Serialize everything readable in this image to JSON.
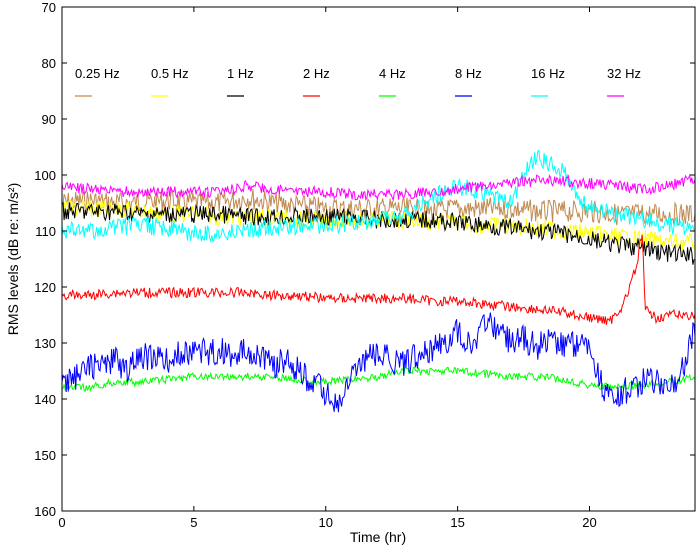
{
  "chart_data": {
    "type": "line",
    "title": "",
    "xlabel": "Time (hr)",
    "ylabel": "RMS levels (dB re: m/s²)",
    "xlim": [
      0,
      24
    ],
    "ylim": [
      70,
      160
    ],
    "y_reversed": true,
    "x_ticks": [
      0,
      5,
      10,
      15,
      20
    ],
    "y_ticks": [
      70,
      80,
      90,
      100,
      110,
      120,
      130,
      140,
      150,
      160
    ],
    "grid": false,
    "legend_placement": "top, horizontal inside axes",
    "series": [
      {
        "name": "0.25 Hz",
        "color": "#c08a50",
        "points": [
          [
            0,
            105
          ],
          [
            1,
            104.5
          ],
          [
            2,
            105
          ],
          [
            3,
            105
          ],
          [
            4,
            104.5
          ],
          [
            5,
            105
          ],
          [
            6,
            105
          ],
          [
            7,
            104
          ],
          [
            8,
            105
          ],
          [
            9,
            105.5
          ],
          [
            10,
            106
          ],
          [
            11,
            106
          ],
          [
            12,
            106
          ],
          [
            13,
            106
          ],
          [
            14,
            106.5
          ],
          [
            15,
            106
          ],
          [
            16,
            106
          ],
          [
            17,
            106
          ],
          [
            18,
            106.5
          ],
          [
            19,
            106.5
          ],
          [
            20,
            106.5
          ],
          [
            21,
            107
          ],
          [
            22,
            107
          ],
          [
            23,
            107
          ],
          [
            24,
            107
          ]
        ]
      },
      {
        "name": "0.5 Hz",
        "color": "#ffff00",
        "points": [
          [
            0,
            106
          ],
          [
            1,
            106
          ],
          [
            2,
            106
          ],
          [
            3,
            106.5
          ],
          [
            4,
            107
          ],
          [
            5,
            107
          ],
          [
            6,
            107.5
          ],
          [
            7,
            107.5
          ],
          [
            8,
            107.5
          ],
          [
            9,
            108
          ],
          [
            10,
            108
          ],
          [
            11,
            108
          ],
          [
            12,
            108
          ],
          [
            13,
            108
          ],
          [
            14,
            108.5
          ],
          [
            15,
            108.5
          ],
          [
            16,
            109
          ],
          [
            17,
            109
          ],
          [
            18,
            109.5
          ],
          [
            19,
            110
          ],
          [
            20,
            110.5
          ],
          [
            21,
            111
          ],
          [
            22,
            111.5
          ],
          [
            23,
            112
          ],
          [
            24,
            112
          ]
        ]
      },
      {
        "name": "1 Hz",
        "color": "#000000",
        "points": [
          [
            0,
            106.5
          ],
          [
            1,
            106.5
          ],
          [
            2,
            106.5
          ],
          [
            3,
            107
          ],
          [
            4,
            107
          ],
          [
            5,
            107
          ],
          [
            6,
            107
          ],
          [
            7,
            107.5
          ],
          [
            8,
            107.5
          ],
          [
            9,
            107.5
          ],
          [
            10,
            107.5
          ],
          [
            11,
            107.5
          ],
          [
            12,
            108
          ],
          [
            13,
            108
          ],
          [
            14,
            108
          ],
          [
            15,
            108.5
          ],
          [
            16,
            109
          ],
          [
            17,
            109.5
          ],
          [
            18,
            110
          ],
          [
            19,
            110.5
          ],
          [
            20,
            111.5
          ],
          [
            21,
            112.5
          ],
          [
            22,
            113
          ],
          [
            23,
            114
          ],
          [
            24,
            114.5
          ]
        ]
      },
      {
        "name": "2 Hz",
        "color": "#ff0000",
        "points": [
          [
            0,
            121.5
          ],
          [
            1,
            121.5
          ],
          [
            2,
            121
          ],
          [
            3,
            121
          ],
          [
            4,
            121
          ],
          [
            5,
            121
          ],
          [
            6,
            121
          ],
          [
            7,
            121
          ],
          [
            8,
            121.5
          ],
          [
            9,
            121.5
          ],
          [
            10,
            122
          ],
          [
            11,
            122
          ],
          [
            12,
            122
          ],
          [
            13,
            122
          ],
          [
            14,
            122.5
          ],
          [
            15,
            122.5
          ],
          [
            16,
            123
          ],
          [
            17,
            123.5
          ],
          [
            18,
            124
          ],
          [
            19,
            124.5
          ],
          [
            20,
            125.5
          ],
          [
            20.8,
            126
          ],
          [
            21.3,
            123
          ],
          [
            21.6,
            119
          ],
          [
            21.8,
            116
          ],
          [
            22,
            110
          ],
          [
            22.1,
            124
          ],
          [
            22.5,
            125.5
          ],
          [
            23,
            125
          ],
          [
            24,
            125
          ]
        ]
      },
      {
        "name": "4 Hz",
        "color": "#00ff00",
        "points": [
          [
            0,
            138
          ],
          [
            1,
            138
          ],
          [
            2,
            137
          ],
          [
            3,
            137
          ],
          [
            4,
            136.5
          ],
          [
            5,
            136
          ],
          [
            6,
            136
          ],
          [
            7,
            136
          ],
          [
            8,
            136
          ],
          [
            9,
            136.5
          ],
          [
            10,
            137
          ],
          [
            11,
            136.5
          ],
          [
            12,
            136
          ],
          [
            13,
            135
          ],
          [
            14,
            135
          ],
          [
            15,
            135
          ],
          [
            16,
            135.5
          ],
          [
            17,
            136
          ],
          [
            18,
            136
          ],
          [
            19,
            136.5
          ],
          [
            20,
            137.5
          ],
          [
            21,
            138
          ],
          [
            22,
            137.5
          ],
          [
            23,
            137
          ],
          [
            24,
            136
          ]
        ]
      },
      {
        "name": "8 Hz",
        "color": "#0000ff",
        "points": [
          [
            0,
            138
          ],
          [
            0.5,
            136
          ],
          [
            1,
            134
          ],
          [
            1.5,
            134
          ],
          [
            2,
            133
          ],
          [
            2.5,
            135
          ],
          [
            3,
            132
          ],
          [
            3.5,
            133
          ],
          [
            4,
            133
          ],
          [
            4.5,
            132
          ],
          [
            5,
            131
          ],
          [
            5.5,
            132
          ],
          [
            6,
            131
          ],
          [
            6.5,
            133
          ],
          [
            7,
            131
          ],
          [
            7.5,
            132
          ],
          [
            8,
            134
          ],
          [
            8.5,
            133
          ],
          [
            9,
            135
          ],
          [
            9.5,
            137
          ],
          [
            10,
            139
          ],
          [
            10.5,
            141
          ],
          [
            11,
            136
          ],
          [
            11.5,
            133
          ],
          [
            12,
            132
          ],
          [
            12.5,
            133
          ],
          [
            13,
            134
          ],
          [
            13.5,
            132
          ],
          [
            14,
            131
          ],
          [
            14.5,
            130
          ],
          [
            15,
            128
          ],
          [
            15.5,
            130
          ],
          [
            16,
            127
          ],
          [
            16.5,
            127
          ],
          [
            17,
            130
          ],
          [
            17.5,
            129
          ],
          [
            18,
            131
          ],
          [
            18.5,
            129
          ],
          [
            19,
            130
          ],
          [
            19.5,
            130
          ],
          [
            20,
            130
          ],
          [
            20.5,
            138
          ],
          [
            21,
            140
          ],
          [
            21.5,
            138
          ],
          [
            22,
            137
          ],
          [
            22.5,
            137
          ],
          [
            23,
            138
          ],
          [
            23.5,
            135
          ],
          [
            24,
            127
          ]
        ]
      },
      {
        "name": "16 Hz",
        "color": "#00ffff",
        "points": [
          [
            0,
            110
          ],
          [
            1,
            110
          ],
          [
            2,
            109.5
          ],
          [
            3,
            109
          ],
          [
            4,
            109.5
          ],
          [
            5,
            110.5
          ],
          [
            6,
            110.5
          ],
          [
            7,
            110
          ],
          [
            8,
            109.5
          ],
          [
            9,
            109
          ],
          [
            10,
            109
          ],
          [
            11,
            108.5
          ],
          [
            12,
            108
          ],
          [
            13,
            107.5
          ],
          [
            14,
            104
          ],
          [
            15,
            102
          ],
          [
            16,
            103
          ],
          [
            16.5,
            104
          ],
          [
            17,
            105
          ],
          [
            17.5,
            100
          ],
          [
            18,
            97
          ],
          [
            18.5,
            98
          ],
          [
            19,
            99
          ],
          [
            19.5,
            104
          ],
          [
            20,
            106
          ],
          [
            21,
            107
          ],
          [
            22,
            108
          ],
          [
            23,
            109
          ],
          [
            24,
            109.5
          ]
        ]
      },
      {
        "name": "32 Hz",
        "color": "#ff00ff",
        "points": [
          [
            0,
            102
          ],
          [
            1,
            102.5
          ],
          [
            2,
            103
          ],
          [
            3,
            103
          ],
          [
            4,
            103
          ],
          [
            5,
            103
          ],
          [
            6,
            103
          ],
          [
            7,
            102
          ],
          [
            8,
            102.5
          ],
          [
            9,
            103
          ],
          [
            10,
            103
          ],
          [
            11,
            103.5
          ],
          [
            12,
            103.5
          ],
          [
            13,
            103.5
          ],
          [
            14,
            103
          ],
          [
            15,
            102.5
          ],
          [
            16,
            102
          ],
          [
            17,
            101.5
          ],
          [
            18,
            101
          ],
          [
            19,
            101
          ],
          [
            20,
            101.5
          ],
          [
            21,
            102
          ],
          [
            22,
            102.5
          ],
          [
            23,
            102
          ],
          [
            24,
            100.5
          ]
        ]
      }
    ]
  }
}
